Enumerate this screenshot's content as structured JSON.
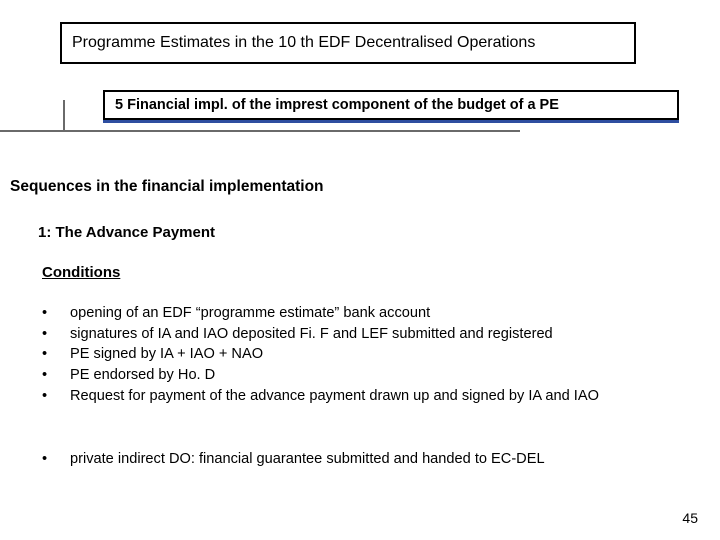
{
  "colors": {
    "accent": "#2e4ea0",
    "rule": "#6a6a6a",
    "border": "#000000",
    "text": "#000000",
    "background": "#ffffff"
  },
  "title": "Programme Estimates in the 10 th EDF Decentralised Operations",
  "subtitle": "5 Financial impl. of the imprest component of the budget of a PE",
  "sections": {
    "sequences": "Sequences in the financial implementation",
    "item1": "1: The Advance Payment",
    "conditions": "Conditions"
  },
  "bullets_main": [
    "opening of an EDF “programme estimate” bank account",
    "signatures of IA and IAO deposited Fi. F and LEF submitted and registered",
    "PE signed by IA + IAO + NAO",
    "PE endorsed by Ho. D",
    "Request for payment of the advance payment drawn up and signed by IA and IAO"
  ],
  "bullets_extra": [
    "private indirect DO: financial guarantee submitted and handed to EC-DEL"
  ],
  "page_number": "45"
}
